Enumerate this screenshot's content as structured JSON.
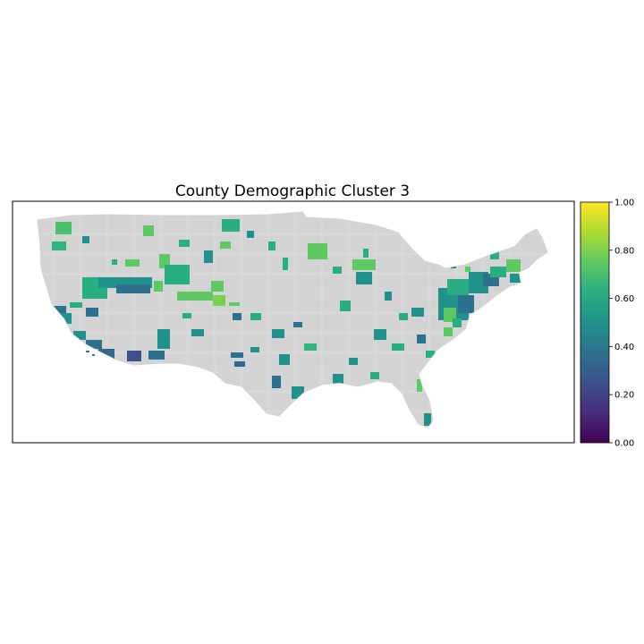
{
  "title": "County Demographic Cluster 3",
  "colorbar": {
    "colormap": "viridis",
    "range": [
      0,
      1
    ],
    "ticks": [
      "0.00",
      "0.20",
      "0.40",
      "0.60",
      "0.80",
      "1.00"
    ]
  },
  "colors": {
    "background": "#ffffff",
    "no_data_fill": "#d3d3d3",
    "county_border": "#ececec",
    "frame": "#000000"
  }
}
